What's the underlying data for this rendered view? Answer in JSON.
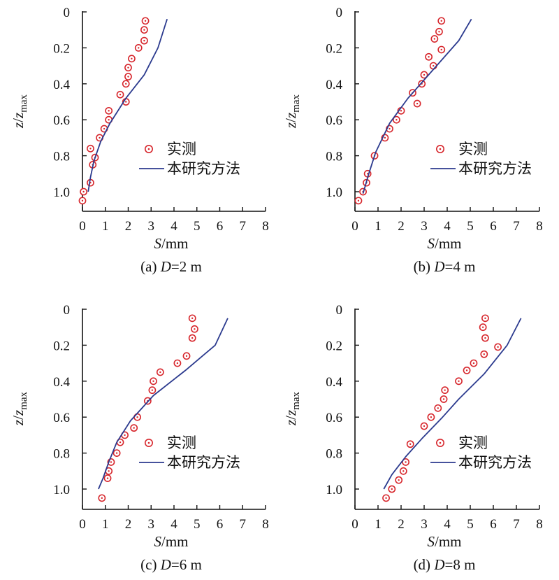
{
  "chart_data": [
    {
      "type": "scatter",
      "caption": "(a) D=2 m",
      "caption_parts": [
        "(a) ",
        "D",
        "=2 m"
      ],
      "xlabel": "S/mm",
      "ylabel": "z/z_max",
      "xlim": [
        0,
        8
      ],
      "ylim": [
        1.1,
        0
      ],
      "xticks": [
        "0",
        "1",
        "2",
        "3",
        "4",
        "5",
        "6",
        "7",
        "8"
      ],
      "yticks": [
        "0",
        "0.2",
        "0.4",
        "0.6",
        "0.8",
        "1.0"
      ],
      "series": [
        {
          "name": "实测",
          "kind": "markers",
          "color": "#d7262c",
          "points": [
            [
              2.75,
              0.05
            ],
            [
              2.7,
              0.1
            ],
            [
              2.7,
              0.16
            ],
            [
              2.45,
              0.2
            ],
            [
              2.15,
              0.26
            ],
            [
              2.0,
              0.31
            ],
            [
              2.0,
              0.36
            ],
            [
              1.9,
              0.4
            ],
            [
              1.65,
              0.46
            ],
            [
              1.9,
              0.5
            ],
            [
              1.15,
              0.55
            ],
            [
              1.15,
              0.6
            ],
            [
              0.95,
              0.65
            ],
            [
              0.75,
              0.7
            ],
            [
              0.55,
              0.81
            ],
            [
              0.35,
              0.76
            ],
            [
              0.45,
              0.85
            ],
            [
              0.35,
              0.95
            ],
            [
              0.05,
              1.0
            ],
            [
              0.0,
              1.05
            ]
          ]
        },
        {
          "name": "本研究方法",
          "kind": "line",
          "color": "#2b3a8e",
          "points": [
            [
              3.7,
              0.04
            ],
            [
              3.3,
              0.2
            ],
            [
              2.7,
              0.35
            ],
            [
              1.9,
              0.48
            ],
            [
              1.2,
              0.62
            ],
            [
              0.8,
              0.72
            ],
            [
              0.5,
              0.83
            ],
            [
              0.35,
              0.92
            ],
            [
              0.25,
              1.0
            ]
          ]
        }
      ]
    },
    {
      "type": "scatter",
      "caption": "(b) D=4 m",
      "caption_parts": [
        "(b) ",
        "D",
        "=4 m"
      ],
      "xlabel": "S/mm",
      "ylabel": "z/z_max",
      "xlim": [
        0,
        8
      ],
      "ylim": [
        1.1,
        0
      ],
      "xticks": [
        "0",
        "1",
        "2",
        "3",
        "4",
        "5",
        "6",
        "7",
        "8"
      ],
      "yticks": [
        "0",
        "0.2",
        "0.4",
        "0.6",
        "0.8",
        "1.0"
      ],
      "series": [
        {
          "name": "实测",
          "kind": "markers",
          "color": "#d7262c",
          "points": [
            [
              3.75,
              0.05
            ],
            [
              3.65,
              0.11
            ],
            [
              3.45,
              0.15
            ],
            [
              3.75,
              0.21
            ],
            [
              3.2,
              0.25
            ],
            [
              3.4,
              0.3
            ],
            [
              3.0,
              0.35
            ],
            [
              2.9,
              0.4
            ],
            [
              2.5,
              0.45
            ],
            [
              2.7,
              0.51
            ],
            [
              2.0,
              0.55
            ],
            [
              1.8,
              0.6
            ],
            [
              1.5,
              0.65
            ],
            [
              1.3,
              0.7
            ],
            [
              0.85,
              0.8
            ],
            [
              0.55,
              0.9
            ],
            [
              0.5,
              0.95
            ],
            [
              0.35,
              1.0
            ],
            [
              0.15,
              1.05
            ]
          ]
        },
        {
          "name": "本研究方法",
          "kind": "line",
          "color": "#2b3a8e",
          "points": [
            [
              5.05,
              0.04
            ],
            [
              4.5,
              0.16
            ],
            [
              3.4,
              0.32
            ],
            [
              2.3,
              0.48
            ],
            [
              1.5,
              0.62
            ],
            [
              0.9,
              0.78
            ],
            [
              0.6,
              0.9
            ],
            [
              0.35,
              1.01
            ]
          ]
        }
      ]
    },
    {
      "type": "scatter",
      "caption": "(c) D=6 m",
      "caption_parts": [
        "(c) ",
        "D",
        "=6 m"
      ],
      "xlabel": "S/mm",
      "ylabel": "z/z_max",
      "xlim": [
        0,
        8
      ],
      "ylim": [
        1.1,
        0
      ],
      "xticks": [
        "0",
        "1",
        "2",
        "3",
        "4",
        "5",
        "6",
        "7",
        "8"
      ],
      "yticks": [
        "0",
        "0.2",
        "0.4",
        "0.6",
        "0.8",
        "1.0"
      ],
      "series": [
        {
          "name": "实测",
          "kind": "markers",
          "color": "#d7262c",
          "points": [
            [
              4.8,
              0.05
            ],
            [
              4.9,
              0.11
            ],
            [
              4.8,
              0.16
            ],
            [
              4.55,
              0.26
            ],
            [
              4.15,
              0.3
            ],
            [
              3.4,
              0.35
            ],
            [
              3.1,
              0.4
            ],
            [
              3.05,
              0.45
            ],
            [
              2.85,
              0.51
            ],
            [
              2.4,
              0.6
            ],
            [
              2.25,
              0.66
            ],
            [
              1.85,
              0.7
            ],
            [
              1.65,
              0.74
            ],
            [
              1.5,
              0.8
            ],
            [
              1.25,
              0.85
            ],
            [
              1.15,
              0.9
            ],
            [
              1.1,
              0.94
            ],
            [
              0.85,
              1.05
            ]
          ]
        },
        {
          "name": "本研究方法",
          "kind": "line",
          "color": "#2b3a8e",
          "points": [
            [
              6.35,
              0.05
            ],
            [
              5.8,
              0.2
            ],
            [
              4.5,
              0.34
            ],
            [
              3.1,
              0.48
            ],
            [
              2.1,
              0.62
            ],
            [
              1.5,
              0.74
            ],
            [
              1.15,
              0.85
            ],
            [
              0.9,
              0.94
            ],
            [
              0.7,
              1.0
            ]
          ]
        }
      ]
    },
    {
      "type": "scatter",
      "caption": "(d) D=8 m",
      "caption_parts": [
        "(d) ",
        "D",
        "=8 m"
      ],
      "xlabel": "S/mm",
      "ylabel": "z/z_max",
      "xlim": [
        0,
        8
      ],
      "ylim": [
        1.1,
        0
      ],
      "xticks": [
        "0",
        "1",
        "2",
        "3",
        "4",
        "5",
        "6",
        "7",
        "8"
      ],
      "yticks": [
        "0",
        "0.2",
        "0.4",
        "0.6",
        "0.8",
        "1.0"
      ],
      "series": [
        {
          "name": "实测",
          "kind": "markers",
          "color": "#d7262c",
          "points": [
            [
              5.65,
              0.05
            ],
            [
              5.55,
              0.1
            ],
            [
              5.65,
              0.16
            ],
            [
              6.2,
              0.21
            ],
            [
              5.6,
              0.25
            ],
            [
              5.15,
              0.3
            ],
            [
              4.85,
              0.34
            ],
            [
              4.5,
              0.4
            ],
            [
              3.9,
              0.45
            ],
            [
              3.85,
              0.5
            ],
            [
              3.6,
              0.55
            ],
            [
              3.3,
              0.6
            ],
            [
              3.0,
              0.65
            ],
            [
              2.4,
              0.75
            ],
            [
              2.2,
              0.85
            ],
            [
              2.1,
              0.9
            ],
            [
              1.9,
              0.95
            ],
            [
              1.6,
              1.0
            ],
            [
              1.35,
              1.05
            ]
          ]
        },
        {
          "name": "本研究方法",
          "kind": "line",
          "color": "#2b3a8e",
          "points": [
            [
              7.2,
              0.05
            ],
            [
              6.6,
              0.2
            ],
            [
              5.6,
              0.36
            ],
            [
              4.5,
              0.5
            ],
            [
              3.8,
              0.6
            ],
            [
              2.9,
              0.72
            ],
            [
              2.2,
              0.82
            ],
            [
              1.6,
              0.92
            ],
            [
              1.25,
              1.0
            ]
          ]
        }
      ]
    }
  ]
}
